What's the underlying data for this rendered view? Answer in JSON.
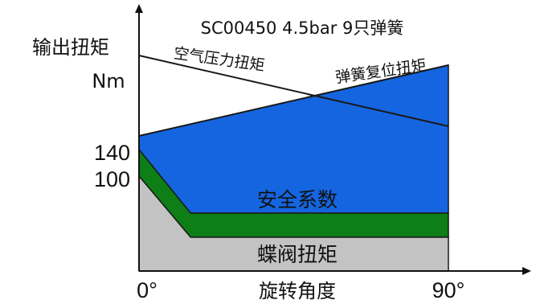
{
  "chart_data": {
    "type": "area",
    "title": "SC00450 4.5bar 9只弹簧",
    "ylabel": "输出扭矩",
    "yunit": "Nm",
    "xlabel": "旋转角度",
    "x_ticks": [
      "0°",
      "90°"
    ],
    "y_ticks": [
      {
        "label": "140",
        "value": 140
      },
      {
        "label": "100",
        "value": 100
      }
    ],
    "xlim": [
      0,
      90
    ],
    "ylim": [
      0,
      275
    ],
    "series": [
      {
        "name": "空气压力扭矩",
        "x": [
          0,
          90
        ],
        "values": [
          268,
          180
        ]
      },
      {
        "name": "弹簧复位扭矩",
        "x": [
          0,
          90
        ],
        "values": [
          168,
          256
        ]
      }
    ],
    "regions": [
      {
        "name": "蝶阀扭矩",
        "x": [
          0,
          15,
          90
        ],
        "values": [
          118,
          42,
          42
        ],
        "color": "#c3c3c3"
      },
      {
        "name": "安全系数",
        "x": [
          0,
          15,
          90
        ],
        "values": [
          151,
          72,
          72
        ],
        "color": "#0e7e16"
      }
    ],
    "colors": {
      "spring_area": "#1565e0",
      "safety": "#0e7e16",
      "valve": "#c3c3c3",
      "line": "#1a1a1a"
    }
  }
}
